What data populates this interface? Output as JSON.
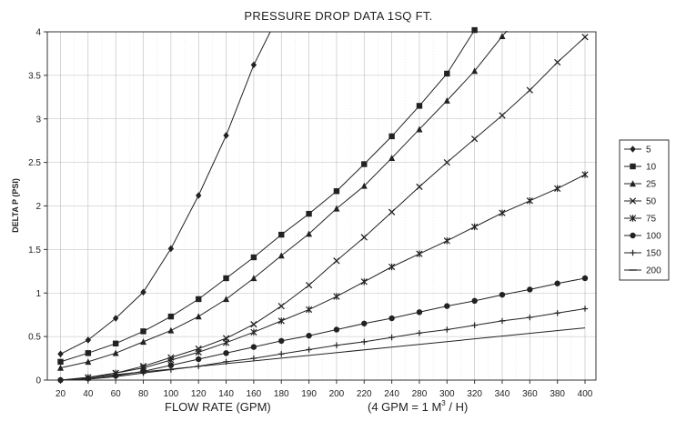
{
  "chart_data": {
    "type": "line",
    "title": "PRESSURE DROP DATA 1SQ FT.",
    "xlabel": "FLOW RATE (GPM)",
    "xnote": "(4 GPM = 1 M",
    "xnote_sup": "3",
    "xnote_end": " / H)",
    "ylabel": "DELTA P (PSI)",
    "ylim": [
      0,
      4
    ],
    "yticks": [
      "0",
      "0.5",
      "1",
      "1.5",
      "2",
      "2.5",
      "3",
      "3.5",
      "4"
    ],
    "x": [
      20,
      40,
      60,
      80,
      100,
      120,
      140,
      160,
      180,
      190,
      200,
      220,
      240,
      280,
      300,
      320,
      340,
      360,
      380,
      400
    ],
    "xtick_labels": [
      "20",
      "40",
      "60",
      "80",
      "100",
      "120",
      "140",
      "160",
      "180",
      "190",
      "200",
      "220",
      "240",
      "280",
      "300",
      "320",
      "340",
      "360",
      "380",
      "400"
    ],
    "grid": true,
    "legend_position": "right",
    "series": [
      {
        "name": "5",
        "marker": "diamond",
        "curve": [
          [
            20,
            0.3
          ],
          [
            40,
            0.46
          ],
          [
            60,
            0.71
          ],
          [
            80,
            1.01
          ],
          [
            100,
            1.51
          ],
          [
            120,
            2.12
          ],
          [
            140,
            2.81
          ],
          [
            160,
            3.62
          ],
          [
            172,
            4.0
          ]
        ],
        "markers": [
          0,
          1,
          2,
          3,
          4,
          5,
          6,
          7
        ]
      },
      {
        "name": "10",
        "marker": "square",
        "curve": [
          [
            20,
            0.21
          ],
          [
            40,
            0.31
          ],
          [
            60,
            0.42
          ],
          [
            80,
            0.56
          ],
          [
            100,
            0.73
          ],
          [
            120,
            0.93
          ],
          [
            140,
            1.17
          ],
          [
            160,
            1.41
          ],
          [
            180,
            1.67
          ],
          [
            190,
            1.91
          ],
          [
            200,
            2.17
          ],
          [
            220,
            2.48
          ],
          [
            240,
            2.8
          ],
          [
            280,
            3.15
          ],
          [
            300,
            3.52
          ],
          [
            320,
            4.02
          ]
        ],
        "markers": [
          0,
          1,
          2,
          3,
          4,
          5,
          6,
          7,
          8,
          9,
          10,
          11,
          12,
          13,
          14,
          15
        ]
      },
      {
        "name": "25",
        "marker": "triangle",
        "curve": [
          [
            20,
            0.14
          ],
          [
            40,
            0.21
          ],
          [
            60,
            0.31
          ],
          [
            80,
            0.44
          ],
          [
            100,
            0.57
          ],
          [
            120,
            0.73
          ],
          [
            140,
            0.93
          ],
          [
            160,
            1.17
          ],
          [
            180,
            1.43
          ],
          [
            190,
            1.68
          ],
          [
            200,
            1.97
          ],
          [
            220,
            2.23
          ],
          [
            240,
            2.55
          ],
          [
            280,
            2.88
          ],
          [
            300,
            3.21
          ],
          [
            320,
            3.55
          ],
          [
            340,
            3.95
          ],
          [
            344,
            4.02
          ]
        ],
        "markers": [
          0,
          1,
          2,
          3,
          4,
          5,
          6,
          7,
          8,
          9,
          10,
          11,
          12,
          13,
          14,
          15,
          16
        ]
      },
      {
        "name": "50",
        "marker": "x",
        "curve": [
          [
            40,
            0.03
          ],
          [
            60,
            0.08
          ],
          [
            80,
            0.16
          ],
          [
            100,
            0.26
          ],
          [
            120,
            0.36
          ],
          [
            140,
            0.48
          ],
          [
            160,
            0.64
          ],
          [
            180,
            0.85
          ],
          [
            190,
            1.09
          ],
          [
            200,
            1.37
          ],
          [
            220,
            1.64
          ],
          [
            240,
            1.93
          ],
          [
            280,
            2.22
          ],
          [
            300,
            2.5
          ],
          [
            320,
            2.77
          ],
          [
            340,
            3.04
          ],
          [
            360,
            3.33
          ],
          [
            380,
            3.65
          ],
          [
            400,
            3.94
          ]
        ],
        "markers": [
          0,
          1,
          2,
          3,
          4,
          5,
          6,
          7,
          8,
          9,
          10,
          11,
          12,
          13,
          14,
          15,
          16,
          17,
          18
        ]
      },
      {
        "name": "75",
        "marker": "asterisk",
        "curve": [
          [
            40,
            0.03
          ],
          [
            60,
            0.08
          ],
          [
            80,
            0.14
          ],
          [
            100,
            0.23
          ],
          [
            120,
            0.32
          ],
          [
            140,
            0.43
          ],
          [
            160,
            0.55
          ],
          [
            180,
            0.68
          ],
          [
            190,
            0.81
          ],
          [
            200,
            0.96
          ],
          [
            220,
            1.13
          ],
          [
            240,
            1.3
          ],
          [
            280,
            1.45
          ],
          [
            300,
            1.6
          ],
          [
            320,
            1.76
          ],
          [
            340,
            1.92
          ],
          [
            360,
            2.06
          ],
          [
            380,
            2.2
          ],
          [
            400,
            2.36
          ]
        ],
        "markers": [
          0,
          1,
          2,
          3,
          4,
          5,
          6,
          7,
          8,
          9,
          10,
          11,
          12,
          13,
          14,
          15,
          16,
          17,
          18
        ]
      },
      {
        "name": "100",
        "marker": "circle",
        "curve": [
          [
            20,
            0.0
          ],
          [
            40,
            0.02
          ],
          [
            60,
            0.05
          ],
          [
            80,
            0.1
          ],
          [
            100,
            0.17
          ],
          [
            120,
            0.24
          ],
          [
            140,
            0.31
          ],
          [
            160,
            0.38
          ],
          [
            180,
            0.45
          ],
          [
            190,
            0.51
          ],
          [
            200,
            0.58
          ],
          [
            220,
            0.65
          ],
          [
            240,
            0.71
          ],
          [
            280,
            0.78
          ],
          [
            300,
            0.85
          ],
          [
            320,
            0.91
          ],
          [
            340,
            0.98
          ],
          [
            360,
            1.04
          ],
          [
            380,
            1.11
          ],
          [
            400,
            1.17
          ]
        ],
        "markers": [
          0,
          1,
          2,
          3,
          4,
          5,
          6,
          7,
          8,
          9,
          10,
          11,
          12,
          13,
          14,
          15,
          16,
          17,
          18,
          19
        ]
      },
      {
        "name": "150",
        "marker": "plus",
        "curve": [
          [
            20,
            0.0
          ],
          [
            40,
            0.01
          ],
          [
            60,
            0.04
          ],
          [
            80,
            0.08
          ],
          [
            100,
            0.12
          ],
          [
            120,
            0.16
          ],
          [
            140,
            0.21
          ],
          [
            160,
            0.25
          ],
          [
            180,
            0.3
          ],
          [
            190,
            0.35
          ],
          [
            200,
            0.4
          ],
          [
            220,
            0.44
          ],
          [
            240,
            0.49
          ],
          [
            280,
            0.54
          ],
          [
            300,
            0.58
          ],
          [
            320,
            0.63
          ],
          [
            340,
            0.68
          ],
          [
            360,
            0.72
          ],
          [
            380,
            0.77
          ],
          [
            400,
            0.82
          ]
        ],
        "markers": [
          0,
          1,
          2,
          3,
          4,
          5,
          6,
          7,
          8,
          9,
          10,
          11,
          12,
          13,
          14,
          15,
          16,
          17,
          18,
          19
        ]
      },
      {
        "name": "200",
        "marker": "dash",
        "curve": [
          [
            20,
            0.0
          ],
          [
            400,
            0.6
          ]
        ],
        "markers": []
      }
    ]
  }
}
